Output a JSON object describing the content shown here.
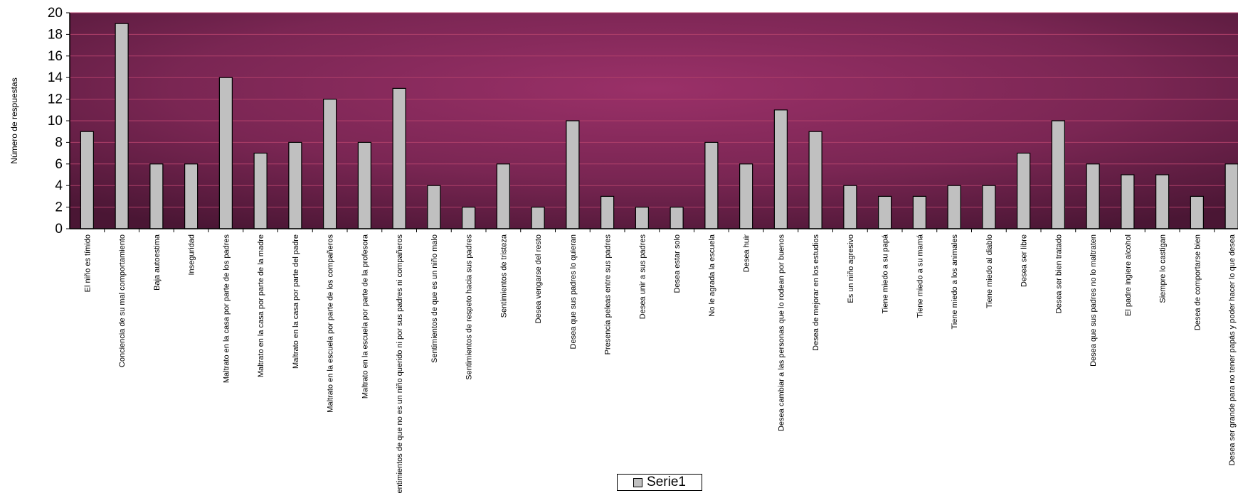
{
  "chart_data": {
    "type": "bar",
    "ylabel": "Número de respuestas",
    "ylim": [
      0,
      20
    ],
    "yticks": [
      0,
      2,
      4,
      6,
      8,
      10,
      12,
      14,
      16,
      18,
      20
    ],
    "grid": true,
    "legend_position": "bottom-center",
    "colors": {
      "plot_center": "#9a3068",
      "plot_edge": "#4a1634",
      "bar_fill": "#c0c0c0",
      "bar_stroke": "#000000",
      "gridline": "#b0406a"
    },
    "categories": [
      "El niño es tímido",
      "Conciencia de su mal comportamiento",
      "Baja autoestima",
      "Inseguridad",
      "Maltrato en la casa por parte de los padres",
      "Maltrato en la casa por parte de la madre",
      "Maltrato en la casa por parte del padre",
      "Maltrato en la escuela por parte de los compañeros",
      "Maltrato en la escuela por parte de la profesora",
      "Sentimientos de que no es un niño querido ni por sus padres ni compañeros",
      "Sentimientos de que es un niño malo",
      "Sentimientos de respeto hacia sus padres",
      "Sentimientos de tristeza",
      "Desea vengarse del resto",
      "Desea que sus padres lo quieran",
      "Presencia peleas entre sus padres",
      "Desea unir a sus padres",
      "Desea estar solo",
      "No le agrada la escuela",
      "Desea huir",
      "Desea cambiar a las personas que lo rodean por buenos",
      "Desea de mejorar en los estudios",
      "Es un niño agresivo",
      "Tiene miedo a su papá",
      "Tiene miedo a su mamá",
      "Tiene miedo a los animales",
      "Tiene miedo al diablo",
      "Desea ser libre",
      "Desea ser bien tratado",
      "Desea que sus padres no lo maltraten",
      "El padre ingiere alcohol",
      "Siempre lo castigan",
      "Desea de comportarse bien",
      "Desea ser grande para no tener papás y poder hacer lo que desea"
    ],
    "series": [
      {
        "name": "Serie1",
        "values": [
          9,
          19,
          6,
          6,
          14,
          7,
          8,
          12,
          8,
          13,
          4,
          2,
          6,
          2,
          10,
          3,
          2,
          2,
          8,
          6,
          11,
          9,
          4,
          3,
          3,
          4,
          4,
          7,
          10,
          6,
          5,
          5,
          3,
          6
        ]
      }
    ]
  }
}
